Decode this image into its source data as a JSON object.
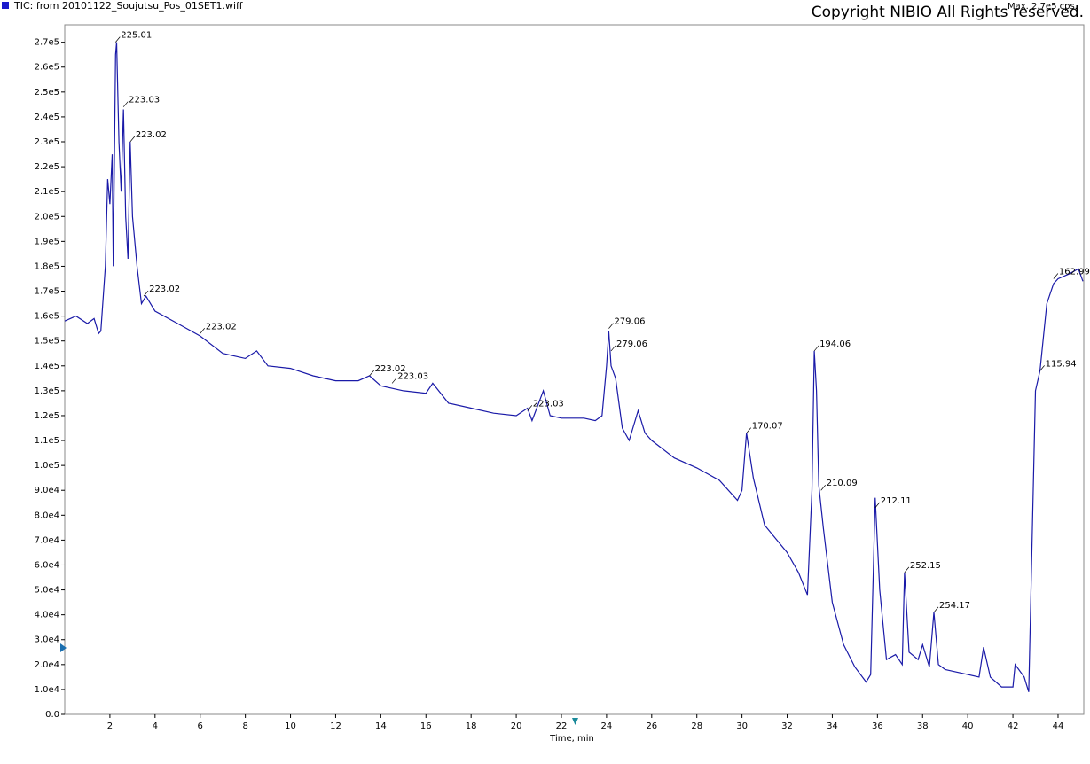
{
  "chart_data": {
    "type": "line",
    "title": "TIC: from 20101122_Soujutsu_Pos_01SET1.wiff",
    "max_label": "Max. 2.7e5 cps.",
    "copyright": "Copyright NIBIO All Rights reserved.",
    "x_label": "Time, min",
    "xlim": [
      0,
      45.14
    ],
    "ylim": [
      0,
      277000
    ],
    "xticks": [
      2,
      4,
      6,
      8,
      10,
      12,
      14,
      16,
      18,
      20,
      22,
      24,
      26,
      28,
      30,
      32,
      34,
      36,
      38,
      40,
      42,
      44
    ],
    "yticks": [
      {
        "value": 0,
        "label": "0.0"
      },
      {
        "value": 10000,
        "label": "1.0e4"
      },
      {
        "value": 20000,
        "label": "2.0e4"
      },
      {
        "value": 30000,
        "label": "3.0e4"
      },
      {
        "value": 40000,
        "label": "4.0e4"
      },
      {
        "value": 50000,
        "label": "5.0e4"
      },
      {
        "value": 60000,
        "label": "6.0e4"
      },
      {
        "value": 70000,
        "label": "7.0e4"
      },
      {
        "value": 80000,
        "label": "8.0e4"
      },
      {
        "value": 90000,
        "label": "9.0e4"
      },
      {
        "value": 100000,
        "label": "1.0e5"
      },
      {
        "value": 110000,
        "label": "1.1e5"
      },
      {
        "value": 120000,
        "label": "1.2e5"
      },
      {
        "value": 130000,
        "label": "1.3e5"
      },
      {
        "value": 140000,
        "label": "1.4e5"
      },
      {
        "value": 150000,
        "label": "1.5e5"
      },
      {
        "value": 160000,
        "label": "1.6e5"
      },
      {
        "value": 170000,
        "label": "1.7e5"
      },
      {
        "value": 180000,
        "label": "1.8e5"
      },
      {
        "value": 190000,
        "label": "1.9e5"
      },
      {
        "value": 200000,
        "label": "2.0e5"
      },
      {
        "value": 210000,
        "label": "2.1e5"
      },
      {
        "value": 220000,
        "label": "2.2e5"
      },
      {
        "value": 230000,
        "label": "2.3e5"
      },
      {
        "value": 240000,
        "label": "2.4e5"
      },
      {
        "value": 250000,
        "label": "2.5e5"
      },
      {
        "value": 260000,
        "label": "2.6e5"
      },
      {
        "value": 270000,
        "label": "2.7e5"
      }
    ],
    "series": [
      {
        "name": "TIC",
        "color": "#1a1aa8",
        "x": [
          0,
          0.5,
          1.0,
          1.3,
          1.5,
          1.6,
          1.8,
          1.9,
          2.0,
          2.1,
          2.15,
          2.25,
          2.3,
          2.4,
          2.5,
          2.6,
          2.7,
          2.8,
          2.9,
          3.0,
          3.2,
          3.4,
          3.6,
          4,
          5,
          6,
          7,
          8,
          8.5,
          9,
          10,
          11,
          12,
          13,
          13.5,
          14,
          15,
          16,
          16.3,
          17,
          18,
          19,
          20,
          20.5,
          20.7,
          21.2,
          21.5,
          22,
          23,
          23.5,
          23.8,
          24.0,
          24.1,
          24.2,
          24.4,
          24.7,
          25,
          25.4,
          25.7,
          26,
          27,
          28,
          29,
          29.8,
          30,
          30.2,
          30.5,
          31,
          32,
          32.5,
          32.9,
          33.1,
          33.2,
          33.3,
          33.4,
          33.6,
          34,
          34.5,
          35,
          35.5,
          35.7,
          35.9,
          36.1,
          36.4,
          36.8,
          37.1,
          37.2,
          37.4,
          37.8,
          38,
          38.3,
          38.5,
          38.7,
          39,
          40,
          40.5,
          40.7,
          41,
          41.5,
          42,
          42.1,
          42.5,
          42.7,
          43.0,
          43.2,
          43.5,
          43.8,
          44,
          44.5,
          44.9,
          45.1
        ],
        "values": [
          158000,
          160000,
          157000,
          159000,
          153000,
          154000,
          180000,
          215000,
          205000,
          225000,
          180000,
          265000,
          270000,
          230000,
          210000,
          243000,
          200000,
          183000,
          230000,
          200000,
          180000,
          165000,
          168000,
          162000,
          157000,
          152000,
          145000,
          143000,
          146000,
          140000,
          139000,
          136000,
          134000,
          134000,
          136000,
          132000,
          130000,
          129000,
          133000,
          125000,
          123000,
          121000,
          120000,
          123000,
          118000,
          130000,
          120000,
          119000,
          119000,
          118000,
          120000,
          140000,
          154000,
          140000,
          135000,
          115000,
          110000,
          122000,
          113000,
          110000,
          103000,
          99000,
          94000,
          86000,
          90000,
          113000,
          95000,
          76000,
          65000,
          57000,
          48000,
          90000,
          146000,
          130000,
          92000,
          75000,
          45000,
          28000,
          19000,
          13000,
          16000,
          87000,
          50000,
          22000,
          24000,
          20000,
          57000,
          25000,
          22000,
          28000,
          19000,
          41000,
          20000,
          18000,
          16000,
          15000,
          27000,
          15000,
          11000,
          11000,
          20000,
          15000,
          9000,
          130000,
          138000,
          165000,
          173000,
          175000,
          177000,
          179000,
          174000
        ]
      }
    ],
    "annotations": [
      {
        "label": "225.01",
        "x": 2.25,
        "y": 270000
      },
      {
        "label": "223.03",
        "x": 2.6,
        "y": 244000
      },
      {
        "label": "223.02",
        "x": 2.9,
        "y": 230000
      },
      {
        "label": "223.02",
        "x": 3.5,
        "y": 168000
      },
      {
        "label": "223.02",
        "x": 6.0,
        "y": 153000
      },
      {
        "label": "223.02",
        "x": 13.5,
        "y": 136000
      },
      {
        "label": "223.03",
        "x": 14.5,
        "y": 133000
      },
      {
        "label": "223.03",
        "x": 20.5,
        "y": 122000
      },
      {
        "label": "279.06",
        "x": 24.1,
        "y": 155000
      },
      {
        "label": "279.06",
        "x": 24.2,
        "y": 146000
      },
      {
        "label": "170.07",
        "x": 30.2,
        "y": 113000
      },
      {
        "label": "194.06",
        "x": 33.2,
        "y": 146000
      },
      {
        "label": "210.09",
        "x": 33.5,
        "y": 90000
      },
      {
        "label": "212.11",
        "x": 35.9,
        "y": 83000
      },
      {
        "label": "252.15",
        "x": 37.2,
        "y": 57000
      },
      {
        "label": "254.17",
        "x": 38.5,
        "y": 41000
      },
      {
        "label": "162.99",
        "x": 43.8,
        "y": 175000
      },
      {
        "label": "115.94",
        "x": 43.2,
        "y": 138000
      }
    ]
  }
}
